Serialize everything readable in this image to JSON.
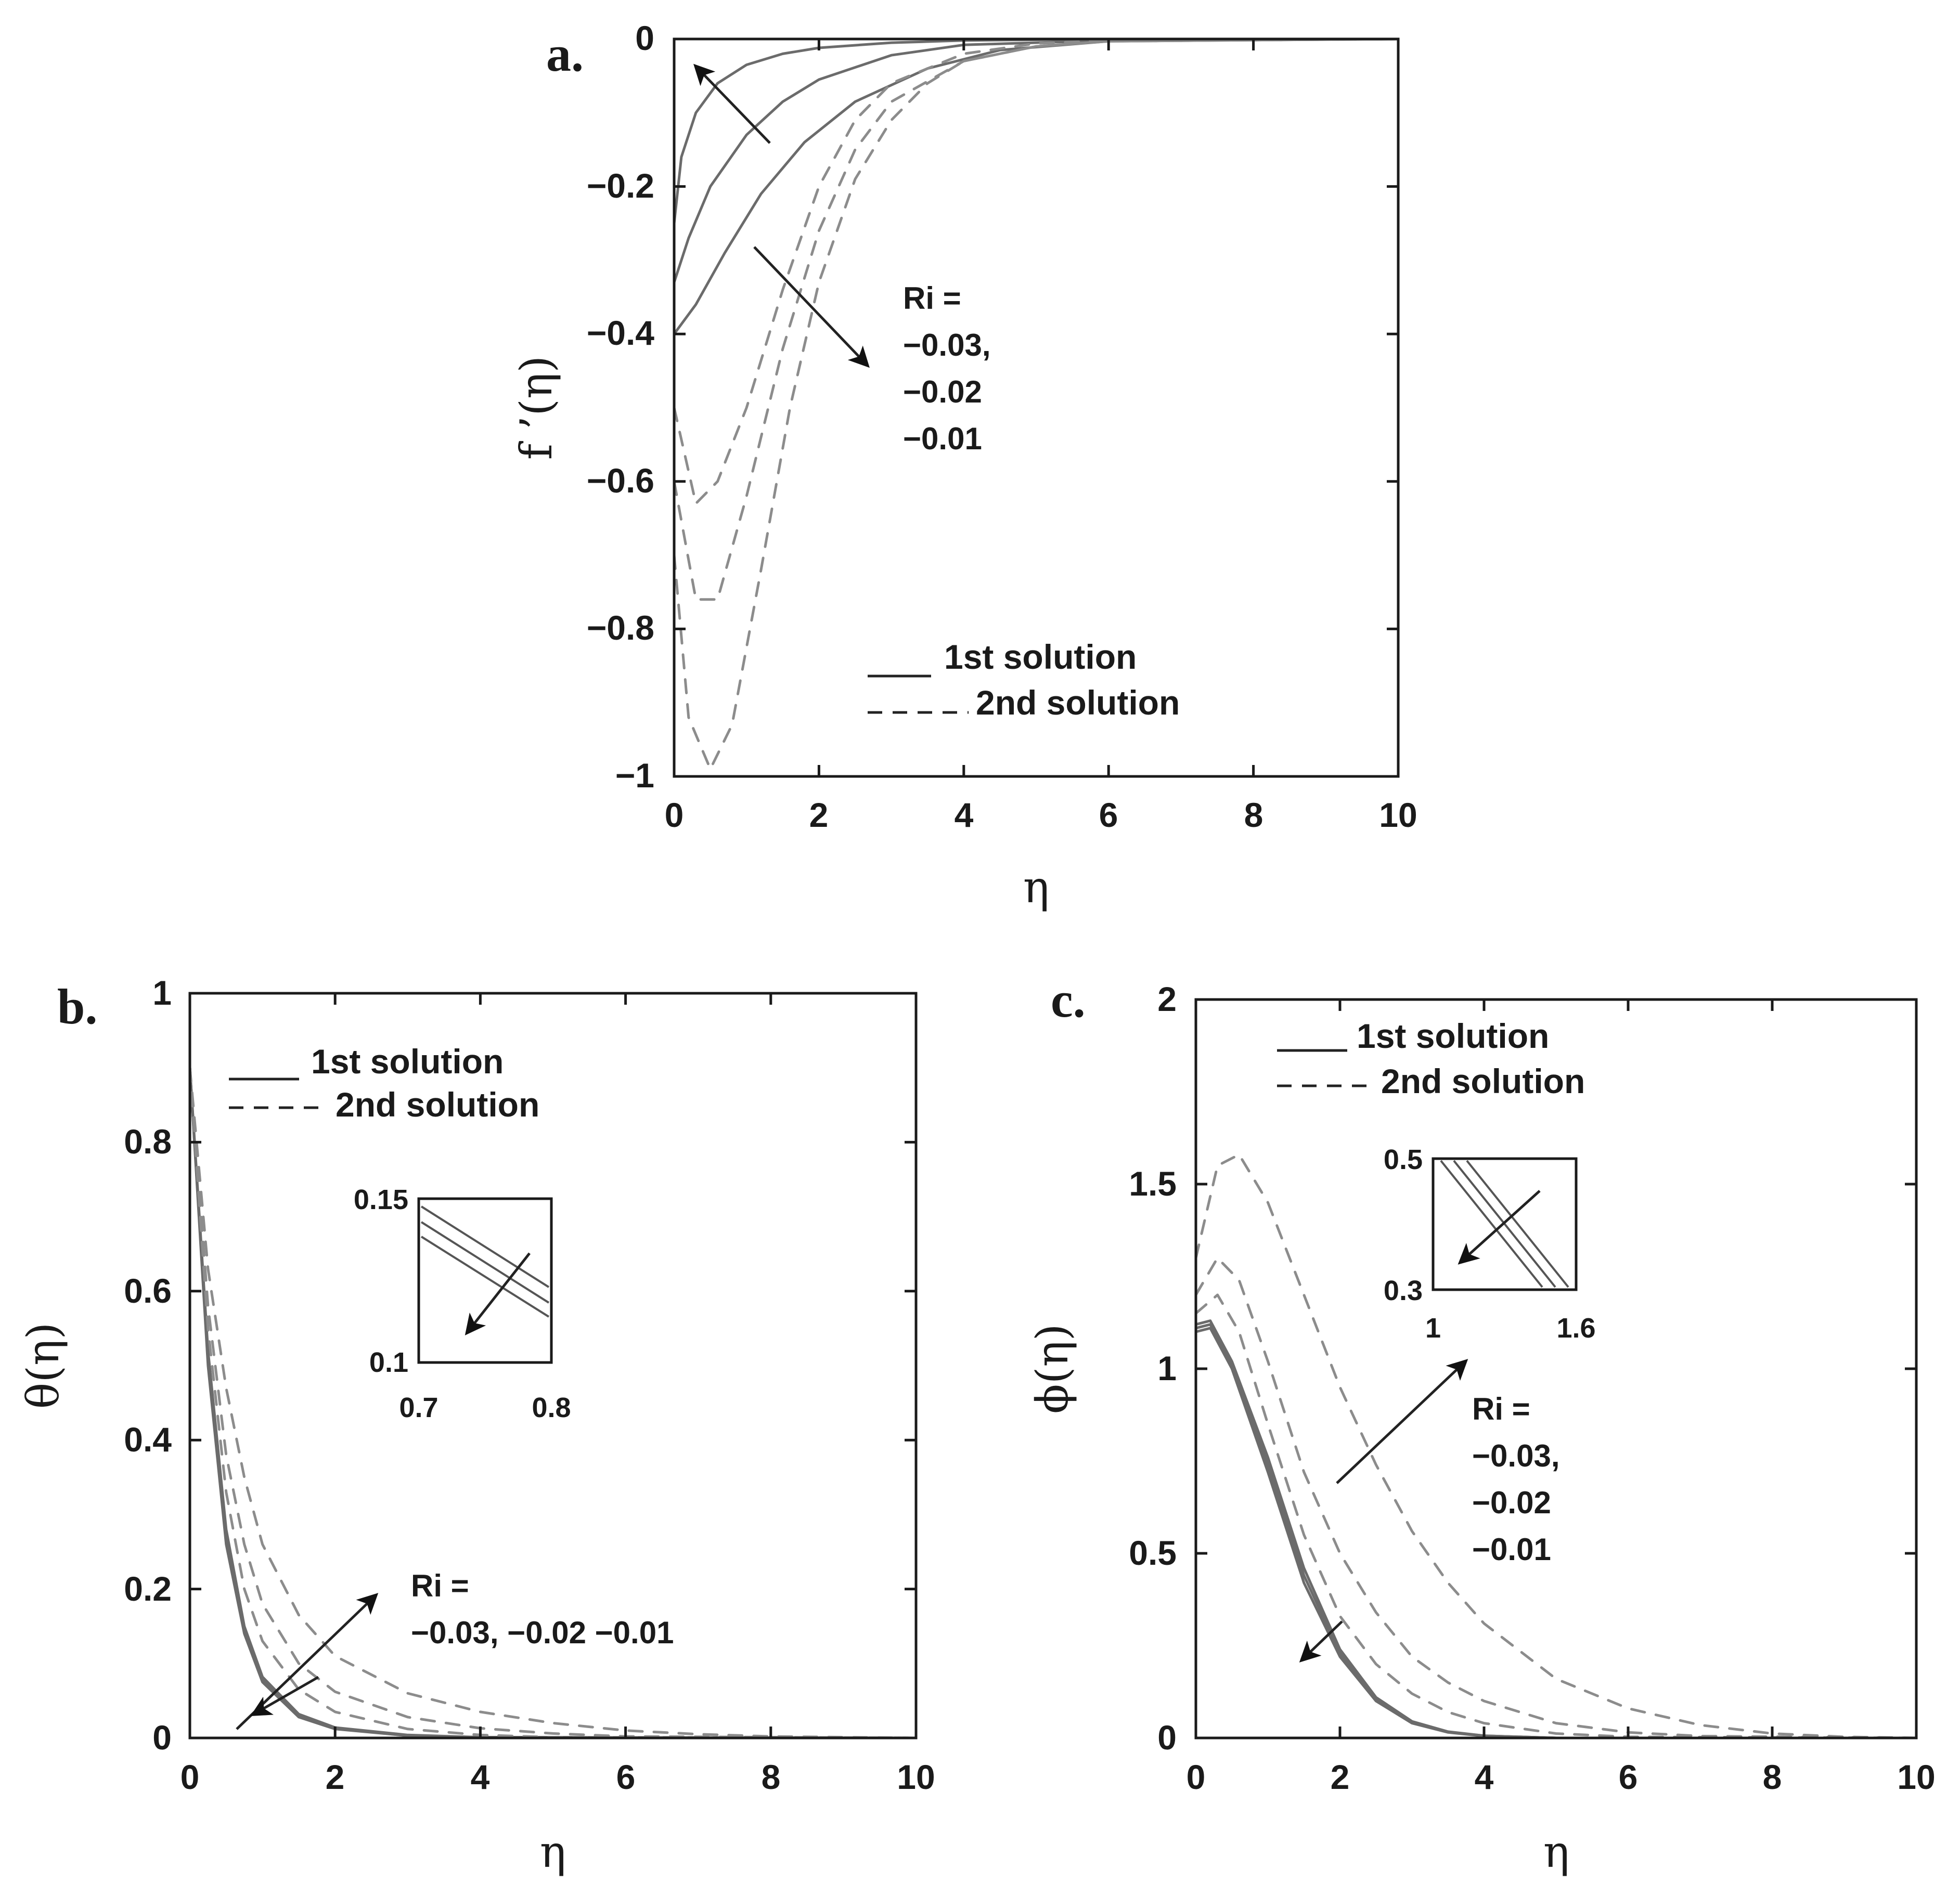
{
  "figure": {
    "legend": {
      "solid": "1st solution",
      "dashed": "2nd solution"
    }
  },
  "chart_data": [
    {
      "panel": "a.",
      "type": "line",
      "xlabel": "η",
      "ylabel": "f ’(η)",
      "xlim": [
        0,
        10
      ],
      "ylim": [
        -1,
        0
      ],
      "xticks": [
        "0",
        "2",
        "4",
        "6",
        "8",
        "10"
      ],
      "yticks": [
        "0",
        "−0.2",
        "−0.4",
        "−0.6",
        "−0.8",
        "−1"
      ],
      "legend_placement": "bottom-right",
      "annotation_lines": [
        "Ri =",
        "−0.03,",
        "−0.02",
        "−0.01"
      ],
      "series": [
        {
          "style": "solid",
          "x": [
            0,
            0.1,
            0.3,
            0.6,
            1,
            1.5,
            2,
            3,
            4,
            6,
            10
          ],
          "y": [
            -0.25,
            -0.16,
            -0.1,
            -0.06,
            -0.035,
            -0.02,
            -0.012,
            -0.005,
            -0.002,
            0,
            0
          ]
        },
        {
          "style": "solid",
          "x": [
            0,
            0.2,
            0.5,
            1,
            1.5,
            2,
            3,
            4,
            6,
            10
          ],
          "y": [
            -0.33,
            -0.27,
            -0.2,
            -0.13,
            -0.085,
            -0.055,
            -0.022,
            -0.008,
            -0.002,
            0
          ]
        },
        {
          "style": "solid",
          "x": [
            0,
            0.3,
            0.7,
            1.2,
            1.8,
            2.5,
            3.5,
            4.5,
            6,
            10
          ],
          "y": [
            -0.4,
            -0.36,
            -0.29,
            -0.21,
            -0.14,
            -0.085,
            -0.04,
            -0.015,
            -0.003,
            0
          ]
        },
        {
          "style": "dashed",
          "x": [
            0,
            0.3,
            0.6,
            1,
            1.5,
            2,
            2.5,
            3,
            4,
            5,
            6,
            10
          ],
          "y": [
            -0.5,
            -0.63,
            -0.6,
            -0.5,
            -0.34,
            -0.2,
            -0.11,
            -0.06,
            -0.02,
            -0.006,
            -0.002,
            0
          ]
        },
        {
          "style": "dashed",
          "x": [
            0,
            0.3,
            0.6,
            1,
            1.5,
            2,
            2.5,
            3,
            4,
            5,
            6,
            10
          ],
          "y": [
            -0.6,
            -0.76,
            -0.76,
            -0.62,
            -0.42,
            -0.26,
            -0.15,
            -0.085,
            -0.03,
            -0.01,
            -0.003,
            0
          ]
        },
        {
          "style": "dashed",
          "x": [
            0,
            0.2,
            0.5,
            0.8,
            1.2,
            1.6,
            2,
            2.5,
            3,
            3.5,
            4,
            5,
            6,
            10
          ],
          "y": [
            -0.7,
            -0.92,
            -0.99,
            -0.93,
            -0.72,
            -0.5,
            -0.33,
            -0.19,
            -0.11,
            -0.06,
            -0.03,
            -0.01,
            -0.003,
            0
          ]
        }
      ]
    },
    {
      "panel": "b.",
      "type": "line",
      "xlabel": "η",
      "ylabel": "θ(η)",
      "xlim": [
        0,
        10
      ],
      "ylim": [
        0,
        1
      ],
      "xticks": [
        "0",
        "2",
        "4",
        "6",
        "8",
        "10"
      ],
      "yticks": [
        "0",
        "0.2",
        "0.4",
        "0.6",
        "0.8",
        "1"
      ],
      "legend_placement": "top-left",
      "annotation_lines": [
        "Ri =",
        "−0.03, −0.02 −0.01"
      ],
      "inset": {
        "xlim": [
          0.7,
          0.8
        ],
        "ylim": [
          0.1,
          0.15
        ],
        "xticks": [
          "0.7",
          "0.8"
        ],
        "yticks": [
          "0.1",
          "0.15"
        ]
      },
      "series": [
        {
          "style": "solid",
          "x": [
            0,
            0.25,
            0.5,
            0.75,
            1,
            1.5,
            2,
            3,
            4,
            10
          ],
          "y": [
            0.9,
            0.5,
            0.26,
            0.14,
            0.075,
            0.028,
            0.012,
            0.003,
            0.001,
            0
          ]
        },
        {
          "style": "solid",
          "x": [
            0,
            0.25,
            0.5,
            0.75,
            1,
            1.5,
            2,
            3,
            4,
            10
          ],
          "y": [
            0.9,
            0.51,
            0.27,
            0.145,
            0.078,
            0.03,
            0.013,
            0.003,
            0.001,
            0
          ]
        },
        {
          "style": "solid",
          "x": [
            0,
            0.25,
            0.5,
            0.75,
            1,
            1.5,
            2,
            3,
            4,
            10
          ],
          "y": [
            0.9,
            0.52,
            0.28,
            0.15,
            0.082,
            0.032,
            0.014,
            0.004,
            0.001,
            0
          ]
        },
        {
          "style": "dashed",
          "x": [
            0,
            0.25,
            0.5,
            0.75,
            1,
            1.5,
            2,
            3,
            4,
            5,
            10
          ],
          "y": [
            0.9,
            0.55,
            0.33,
            0.2,
            0.13,
            0.065,
            0.035,
            0.012,
            0.004,
            0.001,
            0
          ]
        },
        {
          "style": "dashed",
          "x": [
            0,
            0.25,
            0.5,
            0.75,
            1,
            1.5,
            2,
            3,
            4,
            5,
            6,
            10
          ],
          "y": [
            0.9,
            0.58,
            0.38,
            0.26,
            0.18,
            0.1,
            0.062,
            0.028,
            0.013,
            0.006,
            0.002,
            0
          ]
        },
        {
          "style": "dashed",
          "x": [
            0,
            0.25,
            0.5,
            0.75,
            1,
            1.5,
            2,
            3,
            4,
            5,
            6,
            7,
            8,
            10
          ],
          "y": [
            0.9,
            0.63,
            0.47,
            0.35,
            0.26,
            0.165,
            0.11,
            0.06,
            0.035,
            0.02,
            0.01,
            0.005,
            0.002,
            0
          ]
        }
      ]
    },
    {
      "panel": "c.",
      "type": "line",
      "xlabel": "η",
      "ylabel": "ϕ(η)",
      "xlim": [
        0,
        10
      ],
      "ylim": [
        0,
        2
      ],
      "xticks": [
        "0",
        "2",
        "4",
        "6",
        "8",
        "10"
      ],
      "yticks": [
        "0",
        "0.5",
        "1",
        "1.5",
        "2"
      ],
      "legend_placement": "top-left",
      "annotation_lines": [
        "Ri =",
        "−0.03,",
        "−0.02",
        "−0.01"
      ],
      "inset": {
        "xlim": [
          1,
          1.6
        ],
        "ylim": [
          0.3,
          0.5
        ],
        "xticks": [
          "1",
          "1.6"
        ],
        "yticks": [
          "0.3",
          "0.5"
        ]
      },
      "series": [
        {
          "style": "solid",
          "x": [
            0,
            0.2,
            0.5,
            1,
            1.5,
            2,
            2.5,
            3,
            3.5,
            4,
            5,
            10
          ],
          "y": [
            1.1,
            1.11,
            1.0,
            0.72,
            0.42,
            0.22,
            0.1,
            0.04,
            0.015,
            0.005,
            0,
            0
          ]
        },
        {
          "style": "solid",
          "x": [
            0,
            0.2,
            0.5,
            1,
            1.5,
            2,
            2.5,
            3,
            3.5,
            4,
            5,
            10
          ],
          "y": [
            1.11,
            1.12,
            1.01,
            0.74,
            0.44,
            0.23,
            0.105,
            0.042,
            0.016,
            0.006,
            0,
            0
          ]
        },
        {
          "style": "solid",
          "x": [
            0,
            0.2,
            0.5,
            1,
            1.5,
            2,
            2.5,
            3,
            3.5,
            4,
            5,
            10
          ],
          "y": [
            1.12,
            1.13,
            1.02,
            0.76,
            0.46,
            0.24,
            0.11,
            0.045,
            0.017,
            0.006,
            0,
            0
          ]
        },
        {
          "style": "dashed",
          "x": [
            0,
            0.3,
            0.6,
            1,
            1.5,
            2,
            2.5,
            3,
            3.5,
            4,
            5,
            6,
            10
          ],
          "y": [
            1.15,
            1.2,
            1.1,
            0.85,
            0.55,
            0.33,
            0.2,
            0.12,
            0.07,
            0.04,
            0.012,
            0.003,
            0
          ]
        },
        {
          "style": "dashed",
          "x": [
            0,
            0.3,
            0.6,
            1,
            1.5,
            2,
            2.5,
            3,
            3.5,
            4,
            5,
            6,
            7,
            10
          ],
          "y": [
            1.2,
            1.3,
            1.24,
            1.02,
            0.72,
            0.5,
            0.34,
            0.22,
            0.15,
            0.1,
            0.04,
            0.015,
            0.005,
            0
          ]
        },
        {
          "style": "dashed",
          "x": [
            0,
            0.3,
            0.6,
            1,
            1.5,
            2,
            2.5,
            3,
            3.5,
            4,
            5,
            6,
            7,
            8,
            9,
            10
          ],
          "y": [
            1.3,
            1.55,
            1.58,
            1.45,
            1.2,
            0.95,
            0.74,
            0.56,
            0.42,
            0.31,
            0.16,
            0.08,
            0.035,
            0.012,
            0.003,
            0
          ]
        }
      ]
    }
  ]
}
